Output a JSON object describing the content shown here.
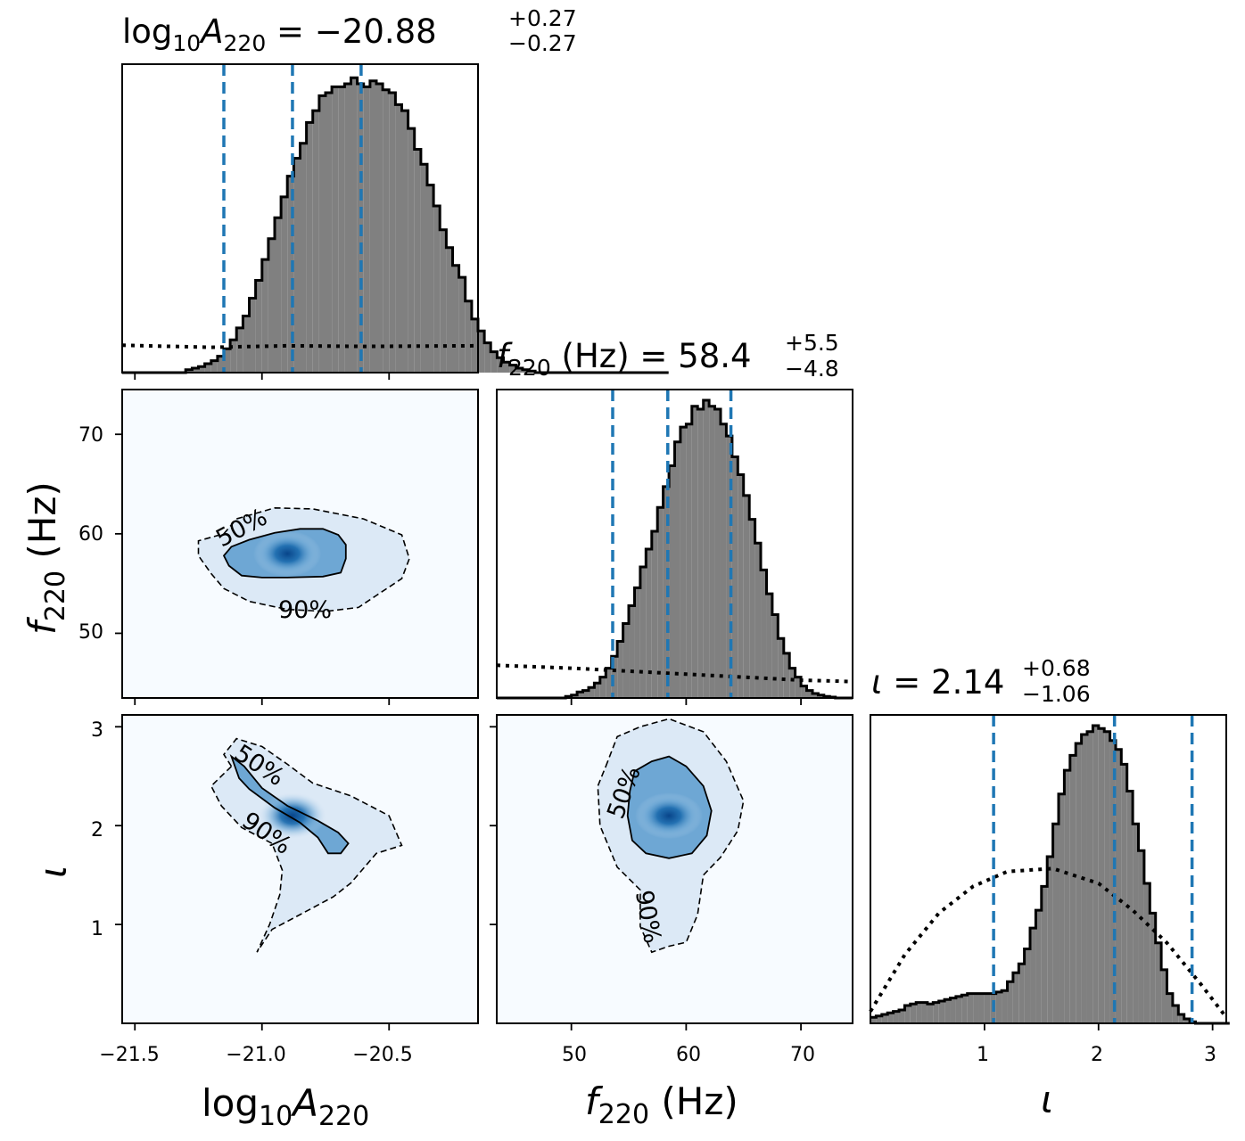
{
  "chart_data": [
    {
      "type": "histogram",
      "panel": "hist-logA",
      "title": {
        "base": "log",
        "base_sub": "10",
        "var": "A",
        "var_sub": "220",
        "value": "= −20.88",
        "plus": "+0.27",
        "minus": "−0.27"
      },
      "xlim": [
        -21.55,
        -20.15
      ],
      "median": -20.88,
      "quantile_lines": [
        -21.15,
        -20.88,
        -20.61
      ],
      "posterior": {
        "x_start": -21.55,
        "bin_width": 0.025,
        "values": [
          0.0,
          0.0,
          0.0,
          0.0,
          0.0,
          0.0,
          0.0,
          0.0,
          0.0,
          0.0,
          0.01,
          0.015,
          0.02,
          0.03,
          0.04,
          0.055,
          0.08,
          0.11,
          0.15,
          0.19,
          0.25,
          0.31,
          0.38,
          0.45,
          0.52,
          0.59,
          0.66,
          0.72,
          0.77,
          0.84,
          0.88,
          0.93,
          0.94,
          0.96,
          0.96,
          0.97,
          0.99,
          0.97,
          0.96,
          0.98,
          0.97,
          0.95,
          0.94,
          0.9,
          0.88,
          0.82,
          0.75,
          0.7,
          0.63,
          0.56,
          0.48,
          0.42,
          0.36,
          0.32,
          0.24,
          0.18,
          0.14,
          0.1,
          0.07,
          0.05,
          0.035,
          0.025,
          0.015,
          0.01,
          0.005,
          0.0,
          0.0,
          0.0,
          0.0,
          0.0,
          0.0,
          0.0,
          0.0,
          0.0,
          0.0,
          0.0,
          0.0,
          0.0,
          0.0,
          0.0,
          0.0,
          0.0,
          0.0,
          0.0,
          0.0,
          0.0
        ]
      },
      "prior": {
        "x": [
          -21.55,
          -21.2,
          -20.9,
          -20.6,
          -20.15
        ],
        "y": [
          0.092,
          0.085,
          0.09,
          0.088,
          0.09
        ]
      },
      "xticks": [
        -21.5,
        -21.0,
        -20.5
      ]
    },
    {
      "type": "heatmap",
      "panel": "kde-logA-f",
      "xlim": [
        -21.55,
        -20.15
      ],
      "ylim": [
        43.5,
        74.5
      ],
      "density_peak": [
        -20.9,
        58
      ],
      "contours": [
        {
          "label": "50%",
          "points": [
            [
              -21.12,
              58.7
            ],
            [
              -21.05,
              59.4
            ],
            [
              -20.95,
              60.1
            ],
            [
              -20.85,
              60.5
            ],
            [
              -20.76,
              60.5
            ],
            [
              -20.7,
              59.9
            ],
            [
              -20.67,
              58.9
            ],
            [
              -20.67,
              57.5
            ],
            [
              -20.69,
              56.1
            ],
            [
              -20.76,
              55.7
            ],
            [
              -20.9,
              55.6
            ],
            [
              -21.0,
              55.6
            ],
            [
              -21.08,
              55.8
            ],
            [
              -21.13,
              56.8
            ],
            [
              -21.15,
              57.8
            ]
          ]
        },
        {
          "label": "90%",
          "points": [
            [
              -21.15,
              60.0
            ],
            [
              -21.1,
              61.5
            ],
            [
              -20.95,
              62.6
            ],
            [
              -20.8,
              62.5
            ],
            [
              -20.6,
              61.5
            ],
            [
              -20.45,
              59.9
            ],
            [
              -20.42,
              57.5
            ],
            [
              -20.45,
              55.5
            ],
            [
              -20.55,
              53.8
            ],
            [
              -20.62,
              52.6
            ],
            [
              -20.75,
              52.2
            ],
            [
              -20.9,
              52.4
            ],
            [
              -21.05,
              53.2
            ],
            [
              -21.15,
              54.5
            ],
            [
              -21.2,
              56.0
            ],
            [
              -21.25,
              57.8
            ],
            [
              -21.25,
              59.3
            ]
          ]
        }
      ],
      "contour_labels": [
        "50%",
        "90%"
      ],
      "yticks": [
        50,
        60,
        70
      ]
    },
    {
      "type": "histogram",
      "panel": "hist-f",
      "title": {
        "var": "f",
        "var_sub": "220",
        "unit": "(Hz)",
        "value": "= 58.4",
        "plus": "+5.5",
        "minus": "−4.8"
      },
      "xlim": [
        43.5,
        74.5
      ],
      "quantile_lines": [
        53.6,
        58.4,
        63.9
      ],
      "posterior": {
        "x_start": 43.5,
        "bin_width": 0.5,
        "values": [
          0.0,
          0.0,
          0.0,
          0.0,
          0.0,
          0.0,
          0.0,
          0.0,
          0.0,
          0.0,
          0.0,
          0.0,
          0.005,
          0.01,
          0.02,
          0.025,
          0.035,
          0.05,
          0.07,
          0.1,
          0.14,
          0.19,
          0.25,
          0.31,
          0.37,
          0.44,
          0.5,
          0.56,
          0.64,
          0.71,
          0.78,
          0.86,
          0.91,
          0.92,
          0.98,
          0.97,
          1.0,
          0.98,
          0.97,
          0.92,
          0.88,
          0.81,
          0.75,
          0.68,
          0.6,
          0.52,
          0.43,
          0.35,
          0.28,
          0.2,
          0.15,
          0.1,
          0.07,
          0.04,
          0.025,
          0.015,
          0.01,
          0.005,
          0.003,
          0.0,
          0.0,
          0.0
        ]
      },
      "prior": {
        "x": [
          43.5,
          50,
          55,
          60,
          65,
          70,
          74.5
        ],
        "y": [
          0.11,
          0.1,
          0.09,
          0.08,
          0.07,
          0.06,
          0.055
        ]
      }
    },
    {
      "type": "heatmap",
      "panel": "kde-logA-iota",
      "xlim": [
        -21.55,
        -20.15
      ],
      "ylim": [
        0.0,
        3.12
      ],
      "density_peak": [
        -20.88,
        2.1
      ],
      "contours": [
        {
          "label": "50%",
          "points": [
            [
              -21.09,
              2.48
            ],
            [
              -21.05,
              2.37
            ],
            [
              -20.95,
              2.18
            ],
            [
              -20.85,
              2.03
            ],
            [
              -20.78,
              1.88
            ],
            [
              -20.74,
              1.72
            ],
            [
              -20.69,
              1.72
            ],
            [
              -20.66,
              1.82
            ],
            [
              -20.7,
              1.93
            ],
            [
              -20.78,
              2.05
            ],
            [
              -20.9,
              2.2
            ],
            [
              -21.0,
              2.38
            ],
            [
              -21.07,
              2.6
            ],
            [
              -21.12,
              2.7
            ]
          ]
        },
        {
          "label": "90%",
          "points": [
            [
              -21.12,
              2.6
            ],
            [
              -21.15,
              2.72
            ],
            [
              -21.1,
              2.88
            ],
            [
              -21.0,
              2.8
            ],
            [
              -20.9,
              2.62
            ],
            [
              -20.8,
              2.43
            ],
            [
              -20.65,
              2.3
            ],
            [
              -20.5,
              2.1
            ],
            [
              -20.45,
              1.8
            ],
            [
              -20.55,
              1.72
            ],
            [
              -20.65,
              1.42
            ],
            [
              -20.72,
              1.28
            ],
            [
              -20.85,
              1.1
            ],
            [
              -20.96,
              0.95
            ],
            [
              -21.02,
              0.72
            ],
            [
              -20.97,
              1.0
            ],
            [
              -20.93,
              1.3
            ],
            [
              -20.92,
              1.55
            ],
            [
              -20.96,
              1.82
            ],
            [
              -21.08,
              1.98
            ],
            [
              -21.16,
              2.2
            ],
            [
              -21.2,
              2.4
            ]
          ]
        }
      ],
      "contour_labels": [
        "50%",
        "90%"
      ],
      "yticks": [
        1,
        2,
        3
      ],
      "xticks": [
        -21.5,
        -21.0,
        -20.5
      ],
      "xticklabels": [
        "−21.5",
        "−21.0",
        "−20.5"
      ]
    },
    {
      "type": "heatmap",
      "panel": "kde-f-iota",
      "xlim": [
        43.5,
        74.5
      ],
      "ylim": [
        0.0,
        3.12
      ],
      "density_peak": [
        58.5,
        2.1
      ],
      "contours": [
        {
          "label": "50%",
          "points": [
            [
              55.5,
              2.55
            ],
            [
              57.0,
              2.65
            ],
            [
              58.5,
              2.7
            ],
            [
              60.0,
              2.6
            ],
            [
              61.5,
              2.4
            ],
            [
              62.2,
              2.15
            ],
            [
              61.8,
              1.9
            ],
            [
              60.5,
              1.72
            ],
            [
              58.5,
              1.67
            ],
            [
              56.5,
              1.72
            ],
            [
              55.3,
              1.85
            ],
            [
              54.9,
              2.1
            ],
            [
              55.1,
              2.35
            ]
          ]
        },
        {
          "label": "90%",
          "points": [
            [
              53.0,
              2.6
            ],
            [
              54.0,
              2.9
            ],
            [
              56.0,
              3.0
            ],
            [
              58.5,
              3.08
            ],
            [
              61.5,
              2.95
            ],
            [
              63.5,
              2.65
            ],
            [
              65.0,
              2.25
            ],
            [
              64.5,
              1.95
            ],
            [
              63.0,
              1.68
            ],
            [
              61.5,
              1.5
            ],
            [
              61.0,
              1.1
            ],
            [
              60.0,
              0.82
            ],
            [
              58.5,
              0.78
            ],
            [
              57.0,
              0.72
            ],
            [
              56.0,
              0.98
            ],
            [
              56.0,
              1.35
            ],
            [
              54.0,
              1.58
            ],
            [
              52.5,
              2.0
            ],
            [
              52.3,
              2.4
            ]
          ]
        }
      ],
      "contour_labels": [
        "50%",
        "90%"
      ],
      "xticks": [
        50,
        60,
        70
      ],
      "xticklabels": [
        "50",
        "60",
        "70"
      ]
    },
    {
      "type": "histogram",
      "panel": "hist-iota",
      "title": {
        "var": "ι",
        "value": "= 2.14",
        "plus": "+0.68",
        "minus": "−1.06"
      },
      "xlim": [
        0.0,
        3.12
      ],
      "quantile_lines": [
        1.08,
        2.14,
        2.82
      ],
      "posterior": {
        "x_start": 0.0,
        "bin_width": 0.05,
        "values": [
          0.02,
          0.025,
          0.03,
          0.035,
          0.04,
          0.045,
          0.06,
          0.065,
          0.07,
          0.07,
          0.065,
          0.07,
          0.075,
          0.08,
          0.085,
          0.09,
          0.095,
          0.1,
          0.1,
          0.1,
          0.1,
          0.1,
          0.105,
          0.11,
          0.14,
          0.17,
          0.2,
          0.25,
          0.32,
          0.38,
          0.46,
          0.56,
          0.67,
          0.77,
          0.85,
          0.9,
          0.94,
          0.97,
          0.98,
          1.0,
          0.99,
          0.98,
          0.95,
          0.92,
          0.87,
          0.78,
          0.67,
          0.58,
          0.47,
          0.37,
          0.27,
          0.18,
          0.1,
          0.06,
          0.03,
          0.015,
          0.005,
          0.0,
          0.0,
          0.0,
          0.0,
          0.0,
          0.0
        ]
      },
      "prior": {
        "x": [
          0.0,
          0.3,
          0.6,
          0.9,
          1.2,
          1.6,
          2.0,
          2.3,
          2.6,
          2.9,
          3.12
        ],
        "y": [
          0.04,
          0.23,
          0.37,
          0.46,
          0.51,
          0.52,
          0.47,
          0.38,
          0.27,
          0.13,
          0.02
        ]
      },
      "xticks": [
        1,
        2,
        3
      ],
      "xticklabels": [
        "1",
        "2",
        "3"
      ]
    }
  ],
  "axis_labels": {
    "x1": {
      "base": "log",
      "base_sub": "10",
      "var": "A",
      "var_sub": "220"
    },
    "x2": {
      "var": "f",
      "var_sub": "220",
      "unit": "(Hz)"
    },
    "x3": {
      "var": "ι"
    },
    "y1": {
      "var": "f",
      "var_sub": "220",
      "unit": "(Hz)"
    },
    "y2": {
      "var": "ι"
    }
  },
  "y_ticklabels_f": [
    "50",
    "60",
    "70"
  ],
  "y_ticklabels_iota": [
    "1",
    "2",
    "3"
  ],
  "colors": {
    "quantile_line": "#1f77b4",
    "hist_fill": "#808080",
    "kde_low": "#f7fbff",
    "kde_high": "#08519c"
  }
}
